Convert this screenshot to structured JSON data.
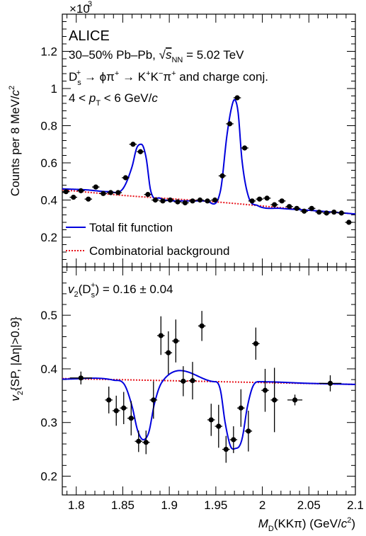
{
  "chart_data": [
    {
      "type": "scatter",
      "multiplier_label": "×10",
      "multiplier_exp": "3",
      "ylabel_main": "Counts per 8 MeV/",
      "ylabel_unit": "c",
      "ylabel_exp": "2",
      "ylim": [
        0.04,
        1.4
      ],
      "yticks": [
        0.2,
        0.4,
        0.6,
        0.8,
        1.0,
        1.2
      ],
      "ytick_labels": [
        "0.2",
        "0.4",
        "0.6",
        "0.8",
        "1",
        "1.2"
      ],
      "xlim": [
        1.785,
        2.1
      ],
      "annotations": {
        "experiment": "ALICE",
        "system_a": "30–50% Pb–Pb, ",
        "system_sqrt": "√",
        "system_s": "s",
        "system_nn": "NN",
        "system_b": " = 5.02 TeV",
        "decay_d": "D",
        "decay_s_sub": "s",
        "decay_plus": "+",
        "decay_rest_a": " → ϕπ",
        "decay_pi_plus": "+",
        "decay_rest_b": " → K",
        "decay_k1": "+",
        "decay_k": "K",
        "decay_k2": "−",
        "decay_pi": "π",
        "decay_pi2": "+",
        "decay_tail": " and charge conj.",
        "pt_a": "4 < ",
        "pt_p": "p",
        "pt_sub": "T",
        "pt_b": " < 6 GeV/",
        "pt_c": "c"
      },
      "legend": {
        "placement": "bottom-left",
        "total": "Total fit function",
        "background": "Combinatorial background",
        "total_color": "#0000dd",
        "background_color": "#e8141c"
      },
      "series": [
        {
          "name": "Data",
          "marker": "circle",
          "color": "#000000",
          "x": [
            1.789,
            1.797,
            1.805,
            1.813,
            1.821,
            1.829,
            1.837,
            1.845,
            1.853,
            1.861,
            1.869,
            1.877,
            1.885,
            1.893,
            1.901,
            1.909,
            1.917,
            1.925,
            1.933,
            1.941,
            1.949,
            1.957,
            1.965,
            1.973,
            1.981,
            1.989,
            1.997,
            2.005,
            2.013,
            2.021,
            2.029,
            2.037,
            2.045,
            2.053,
            2.061,
            2.069,
            2.077,
            2.085,
            2.093
          ],
          "y": [
            0.445,
            0.415,
            0.45,
            0.405,
            0.47,
            0.435,
            0.44,
            0.44,
            0.52,
            0.7,
            0.66,
            0.43,
            0.4,
            0.395,
            0.4,
            0.39,
            0.385,
            0.395,
            0.4,
            0.395,
            0.4,
            0.53,
            0.81,
            0.95,
            0.68,
            0.395,
            0.405,
            0.41,
            0.375,
            0.395,
            0.365,
            0.355,
            0.34,
            0.355,
            0.335,
            0.33,
            0.335,
            0.33,
            0.28
          ]
        }
      ],
      "fit_curves": {
        "total": {
          "x": [
            1.785,
            1.81,
            1.835,
            1.85,
            1.86,
            1.865,
            1.87,
            1.875,
            1.88,
            1.89,
            1.91,
            1.94,
            1.955,
            1.962,
            1.967,
            1.97,
            1.974,
            1.978,
            1.985,
            1.995,
            2.02,
            2.05,
            2.1
          ],
          "y": [
            0.46,
            0.455,
            0.445,
            0.46,
            0.58,
            0.68,
            0.7,
            0.63,
            0.45,
            0.41,
            0.395,
            0.395,
            0.45,
            0.75,
            0.9,
            0.94,
            0.87,
            0.62,
            0.42,
            0.37,
            0.355,
            0.345,
            0.325
          ]
        },
        "background": {
          "x": [
            1.785,
            1.85,
            1.95,
            2.05,
            2.1
          ],
          "y": [
            0.455,
            0.425,
            0.39,
            0.345,
            0.325
          ]
        }
      }
    },
    {
      "type": "scatter",
      "ylabel_v": "v",
      "ylabel_sub": "2",
      "ylabel_rest": "{SP, |Δη|>0.9}",
      "xlabel_m": "M",
      "xlabel_sub": "D",
      "xlabel_rest": "(KKπ) (GeV/",
      "xlabel_c": "c",
      "xlabel_exp": "2",
      "xlabel_close": ")",
      "ylim": [
        0.165,
        0.59
      ],
      "yticks": [
        0.2,
        0.3,
        0.4,
        0.5
      ],
      "ytick_labels": [
        "0.2",
        "0.3",
        "0.4",
        "0.5"
      ],
      "xlim": [
        1.785,
        2.1
      ],
      "xticks": [
        1.8,
        1.85,
        1.9,
        1.95,
        2.0,
        2.05,
        2.1
      ],
      "xtick_labels": [
        "1.8",
        "1.85",
        "1.9",
        "1.95",
        "2",
        "2.05",
        "2.1"
      ],
      "annotation": {
        "v": "v",
        "sub2": "2",
        "open": "(D",
        "sub_s": "s",
        "sup_plus": "+",
        "rest": ") = 0.16 ± 0.04"
      },
      "series": [
        {
          "name": "Data",
          "marker": "circle",
          "color": "#000000",
          "x": [
            1.805,
            1.835,
            1.843,
            1.851,
            1.859,
            1.867,
            1.875,
            1.883,
            1.891,
            1.899,
            1.907,
            1.915,
            1.925,
            1.935,
            1.945,
            1.953,
            1.961,
            1.969,
            1.977,
            1.985,
            1.993,
            2.003,
            2.013,
            2.035,
            2.073
          ],
          "x_err": [
            0.012,
            0.004,
            0.004,
            0.004,
            0.004,
            0.004,
            0.004,
            0.004,
            0.004,
            0.004,
            0.004,
            0.004,
            0.004,
            0.004,
            0.004,
            0.004,
            0.004,
            0.004,
            0.004,
            0.004,
            0.004,
            0.004,
            0.004,
            0.008,
            0.012
          ],
          "y": [
            0.383,
            0.342,
            0.322,
            0.327,
            0.308,
            0.265,
            0.263,
            0.342,
            0.462,
            0.43,
            0.452,
            0.377,
            0.378,
            0.48,
            0.305,
            0.293,
            0.25,
            0.268,
            0.327,
            0.284,
            0.447,
            0.36,
            0.342,
            0.342,
            0.373
          ],
          "y_err": [
            0.012,
            0.025,
            0.028,
            0.03,
            0.032,
            0.02,
            0.022,
            0.035,
            0.036,
            0.04,
            0.04,
            0.028,
            0.035,
            0.028,
            0.03,
            0.04,
            0.025,
            0.025,
            0.035,
            0.038,
            0.03,
            0.04,
            0.06,
            0.01,
            0.015
          ]
        }
      ],
      "fit_curves": {
        "total": {
          "x": [
            1.785,
            1.84,
            1.852,
            1.86,
            1.866,
            1.872,
            1.878,
            1.884,
            1.892,
            1.95,
            1.955,
            1.96,
            1.966,
            1.972,
            1.978,
            1.984,
            1.99,
            1.998,
            2.05,
            2.1
          ],
          "y": [
            0.381,
            0.379,
            0.37,
            0.33,
            0.285,
            0.268,
            0.282,
            0.335,
            0.375,
            0.376,
            0.36,
            0.3,
            0.255,
            0.252,
            0.268,
            0.33,
            0.368,
            0.376,
            0.373,
            0.371
          ],
          "color": "#0000dd"
        },
        "background": {
          "x": [
            1.785,
            2.1
          ],
          "y": [
            0.382,
            0.371
          ],
          "color": "#e8141c"
        }
      }
    }
  ]
}
